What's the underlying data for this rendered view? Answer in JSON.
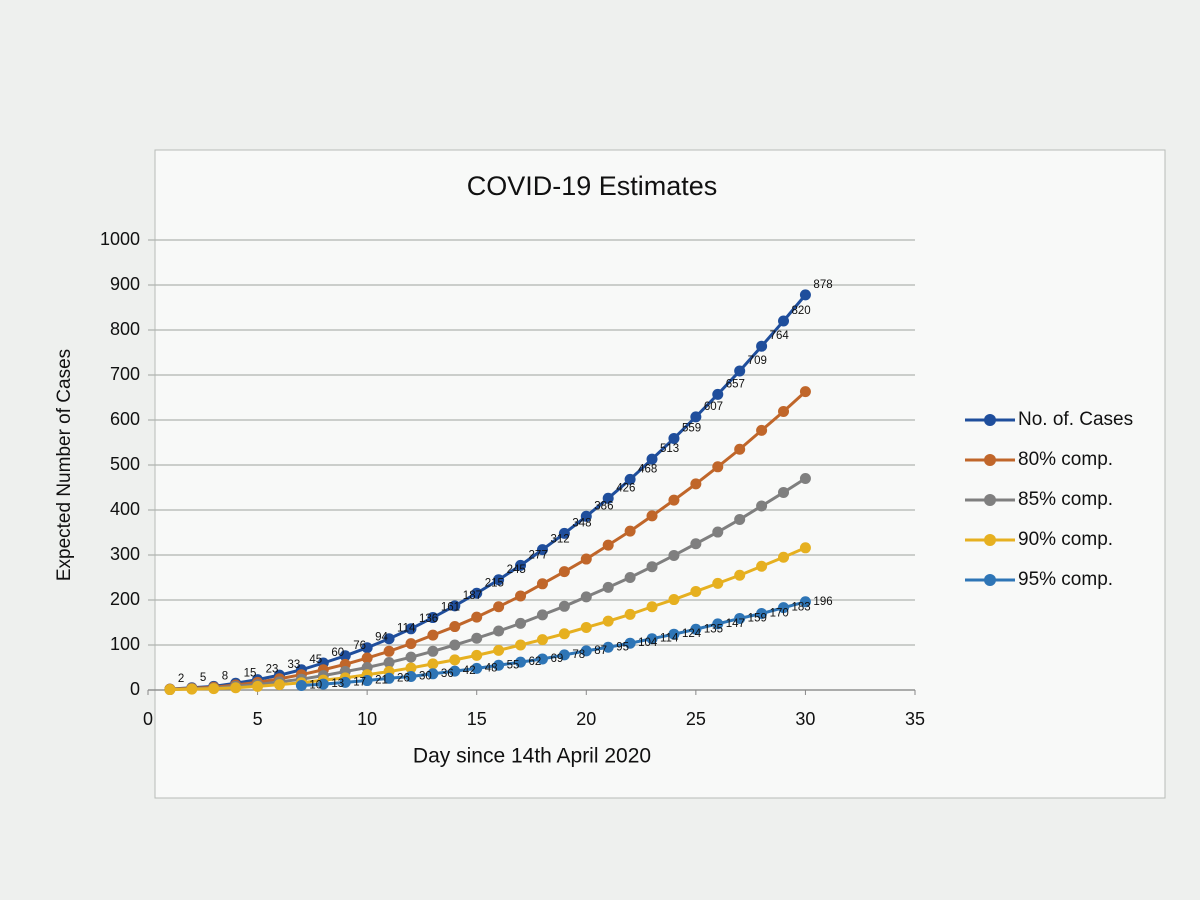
{
  "chart_data": {
    "type": "line",
    "title": "COVID-19 Estimates",
    "x_label": "Day since 14th April 2020",
    "y_label": "Expected Number of Cases",
    "x": [
      1,
      2,
      3,
      4,
      5,
      6,
      7,
      8,
      9,
      10,
      11,
      12,
      13,
      14,
      15,
      16,
      17,
      18,
      19,
      20,
      21,
      22,
      23,
      24,
      25,
      26,
      27,
      28,
      29,
      30
    ],
    "series": [
      {
        "name": "No. of. Cases",
        "color": "#1f4e9c",
        "data_labels": true,
        "values": [
          2,
          5,
          8,
          15,
          23,
          33,
          45,
          60,
          76,
          94,
          114,
          136,
          161,
          187,
          215,
          245,
          277,
          312,
          348,
          386,
          426,
          468,
          513,
          559,
          607,
          657,
          709,
          764,
          820,
          878
        ]
      },
      {
        "name": "80% comp.",
        "color": "#c0662a",
        "data_labels": false,
        "values": [
          2,
          4,
          6,
          11,
          17,
          25,
          34,
          45,
          57,
          71,
          86,
          103,
          122,
          141,
          162,
          185,
          209,
          236,
          263,
          291,
          322,
          353,
          387,
          422,
          458,
          496,
          535,
          577,
          619,
          663
        ]
      },
      {
        "name": "85% comp.",
        "color": "#7f7f7f",
        "data_labels": false,
        "values": [
          1,
          3,
          4,
          8,
          12,
          18,
          24,
          32,
          41,
          50,
          61,
          73,
          86,
          100,
          115,
          131,
          148,
          167,
          186,
          207,
          228,
          250,
          274,
          299,
          325,
          351,
          379,
          409,
          439,
          470
        ]
      },
      {
        "name": "90% comp.",
        "color": "#e6b020",
        "data_labels": false,
        "values": [
          1,
          2,
          3,
          5,
          8,
          12,
          16,
          22,
          27,
          34,
          41,
          49,
          58,
          67,
          77,
          88,
          100,
          112,
          125,
          139,
          153,
          168,
          185,
          201,
          219,
          237,
          255,
          275,
          295,
          316
        ]
      },
      {
        "name": "95% comp.",
        "color": "#2e75b6",
        "data_labels": true,
        "values": [
          null,
          null,
          null,
          null,
          null,
          null,
          10,
          13,
          17,
          21,
          26,
          30,
          36,
          42,
          48,
          55,
          62,
          69,
          78,
          87,
          95,
          104,
          114,
          124,
          135,
          147,
          159,
          170,
          183,
          196
        ]
      }
    ],
    "xlim": [
      0,
      35
    ],
    "xticks": [
      0,
      5,
      10,
      15,
      20,
      25,
      30,
      35
    ],
    "ylim": [
      0,
      1000
    ],
    "yticks": [
      0,
      100,
      200,
      300,
      400,
      500,
      600,
      700,
      800,
      900,
      1000
    ],
    "grid": true,
    "legend": "right"
  }
}
